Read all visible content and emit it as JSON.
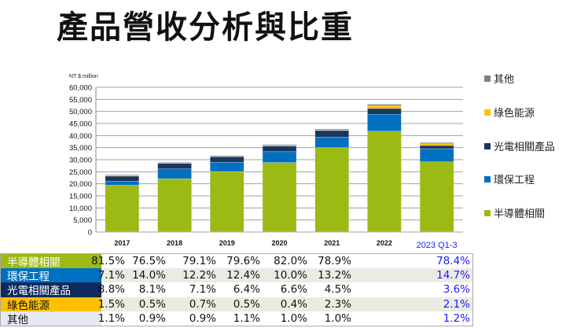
{
  "title": "產品營收分析與比重",
  "chart_data": {
    "type": "bar",
    "stacked": true,
    "ylabel": "NT $ million",
    "ylim": [
      0,
      60000
    ],
    "yticks": [
      0,
      5000,
      10000,
      15000,
      20000,
      25000,
      30000,
      35000,
      40000,
      45000,
      50000,
      55000,
      60000
    ],
    "ytick_labels": [
      "0",
      "5,000",
      "10,000",
      "15,000",
      "20,000",
      "25,000",
      "30,000",
      "35,000",
      "40,000",
      "45,000",
      "50,000",
      "55,000",
      "60,000"
    ],
    "grid": true,
    "legend_position": "right",
    "categories": [
      "2017",
      "2018",
      "2019",
      "2020",
      "2021",
      "2022",
      "2023 Q1-3"
    ],
    "series": [
      {
        "name": "半導體相關",
        "color": "#9cba14",
        "values": [
          19400,
          22110,
          25080,
          28820,
          35010,
          41820,
          29090
        ]
      },
      {
        "name": "環保工程",
        "color": "#0070c0",
        "values": [
          1690,
          4050,
          3870,
          4490,
          4270,
          7000,
          5450
        ]
      },
      {
        "name": "光電相關產品",
        "color": "#17375e",
        "values": [
          2090,
          2340,
          2250,
          2320,
          2820,
          2390,
          1340
        ]
      },
      {
        "name": "綠色能源",
        "color": "#ffc000",
        "values": [
          360,
          150,
          220,
          180,
          170,
          1220,
          780
        ]
      },
      {
        "name": "其他",
        "color": "#808080",
        "values": [
          260,
          260,
          290,
          400,
          430,
          530,
          450
        ]
      }
    ]
  },
  "legend_order": [
    "其他",
    "綠色能源",
    "光電相關產品",
    "環保工程",
    "半導體相關"
  ],
  "table": {
    "rows": [
      {
        "label": "半導體相關",
        "bg": "#9cba14",
        "fg": "#ffffff",
        "values": [
          "81.5%",
          "76.5%",
          "79.1%",
          "79.6%",
          "82.0%",
          "78.9%",
          "78.4%"
        ]
      },
      {
        "label": "環保工程",
        "bg": "#0070c0",
        "fg": "#ffffff",
        "values": [
          "7.1%",
          "14.0%",
          "12.2%",
          "12.4%",
          "10.0%",
          "13.2%",
          "14.7%"
        ]
      },
      {
        "label": "光電相關產品",
        "bg": "#0f2a5c",
        "fg": "#ffffff",
        "values": [
          "8.8%",
          "8.1%",
          "7.1%",
          "6.4%",
          "6.6%",
          "4.5%",
          "3.6%"
        ]
      },
      {
        "label": "綠色能源",
        "bg": "#ffc000",
        "fg": "#111111",
        "values": [
          "1.5%",
          "0.5%",
          "0.7%",
          "0.5%",
          "0.4%",
          "2.3%",
          "2.1%"
        ]
      },
      {
        "label": "其他",
        "bg": "#e4e9f2",
        "fg": "#111111",
        "values": [
          "1.1%",
          "0.9%",
          "0.9%",
          "1.1%",
          "1.0%",
          "1.0%",
          "1.2%"
        ]
      }
    ]
  },
  "highlight_color": "#1a1aff"
}
